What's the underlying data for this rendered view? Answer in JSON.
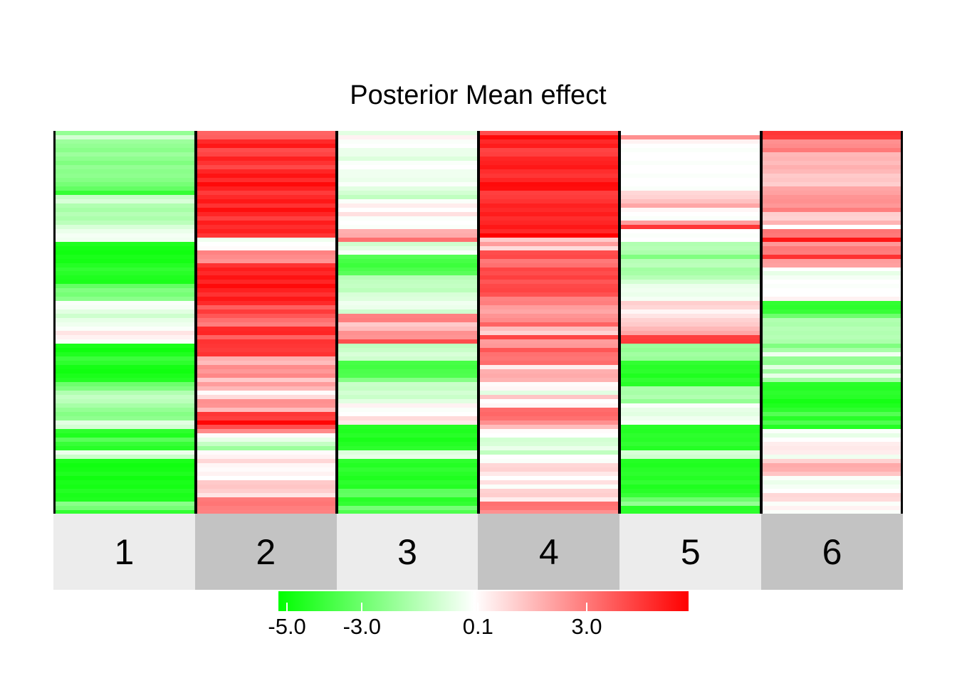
{
  "title": "Posterior Mean effect",
  "colors": {
    "background": "#ffffff",
    "separator": "#000000",
    "band_light": "#ececec",
    "band_dark": "#c3c3c3",
    "legend_tick": "#ffffff"
  },
  "chart_data": {
    "type": "heatmap",
    "title": "Posterior Mean effect",
    "orientation": "vertical-columns",
    "categories": [
      "1",
      "2",
      "3",
      "4",
      "5",
      "6"
    ],
    "rows_per_column": 90,
    "value_range": [
      -5.23,
      5.72
    ],
    "colormap": {
      "negative": "#00ff00",
      "zero": "#ffffff",
      "positive": "#ff0000"
    },
    "legend_ticks": [
      {
        "label": "-5.0",
        "value": -5.0
      },
      {
        "label": "-3.0",
        "value": -3.0
      },
      {
        "label": "0.1",
        "value": 0.1
      },
      {
        "label": "3.0",
        "value": 3.0
      }
    ],
    "series": [
      {
        "name": "1",
        "values": [
          -2.2,
          -0.9,
          -2.0,
          -2.2,
          -2.4,
          -2.0,
          -2.3,
          -2.6,
          -2.2,
          -2.4,
          -2.3,
          -2.5,
          -2.8,
          -3.2,
          -4.2,
          -1.2,
          -0.8,
          -1.6,
          -1.8,
          -1.5,
          -1.7,
          -1.4,
          -0.8,
          -0.4,
          -0.2,
          -0.3,
          -4.6,
          -4.8,
          -4.9,
          -4.7,
          -4.8,
          -4.5,
          -4.2,
          -4.4,
          -4.6,
          -4.7,
          -3.2,
          -2.6,
          -2.8,
          -2.4,
          -0.1,
          -0.2,
          -0.6,
          -1.0,
          -0.5,
          -0.3,
          -0.1,
          0.6,
          0.3,
          -0.1,
          -4.7,
          -4.9,
          -4.6,
          -4.0,
          -4.3,
          -4.8,
          -4.9,
          -4.7,
          -4.5,
          -3.0,
          -2.6,
          -1.6,
          -1.2,
          -1.4,
          -1.8,
          -2.2,
          -2.5,
          -2.3,
          -0.6,
          -0.9,
          -4.3,
          -4.6,
          -3.4,
          -4.1,
          -4.4,
          -0.4,
          -1.1,
          -4.7,
          -4.9,
          -4.8,
          -4.6,
          -4.9,
          -4.7,
          -4.8,
          -4.5,
          -4.7,
          -4.6,
          -2.4,
          -2.8,
          -4.2
        ]
      },
      {
        "name": "2",
        "values": [
          3.5,
          3.6,
          4.8,
          5.2,
          4.0,
          4.2,
          5.0,
          4.6,
          4.1,
          4.9,
          5.3,
          4.7,
          5.5,
          5.0,
          4.4,
          4.8,
          5.2,
          4.6,
          5.4,
          4.9,
          4.3,
          5.1,
          4.7,
          5.0,
          4.5,
          -0.3,
          0.0,
          0.1,
          2.8,
          2.6,
          2.4,
          4.6,
          5.1,
          4.8,
          5.3,
          4.9,
          5.5,
          5.0,
          4.6,
          5.2,
          4.8,
          3.6,
          4.4,
          3.8,
          3.2,
          2.9,
          4.8,
          4.9,
          3.5,
          4.6,
          4.5,
          4.4,
          4.6,
          1.8,
          1.5,
          2.6,
          2.3,
          2.7,
          1.2,
          2.2,
          1.6,
          0.1,
          0.8,
          2.5,
          2.4,
          1.5,
          4.5,
          4.3,
          5.6,
          4.0,
          2.6,
          0.1,
          -0.5,
          -1.2,
          -2.0,
          0.1,
          0.3,
          0.9,
          0.2,
          0.1,
          0.3,
          0.0,
          1.2,
          1.3,
          1.1,
          0.6,
          3.0,
          3.1,
          2.9,
          2.8
        ]
      },
      {
        "name": "3",
        "values": [
          -0.6,
          0.3,
          -0.1,
          0.0,
          -0.4,
          -0.4,
          -0.7,
          -0.1,
          0.0,
          -0.3,
          -0.3,
          -0.4,
          -0.1,
          -0.6,
          -0.9,
          -1.3,
          -0.1,
          0.4,
          0.0,
          0.7,
          -0.1,
          0.0,
          -0.1,
          1.8,
          1.9,
          3.2,
          -1.0,
          -0.6,
          -0.1,
          -3.5,
          -3.8,
          -4.0,
          -3.7,
          -3.4,
          -1.5,
          -1.3,
          -1.2,
          -1.4,
          -0.8,
          -0.7,
          -0.3,
          -0.4,
          -1.0,
          2.8,
          2.9,
          1.2,
          1.5,
          2.5,
          2.4,
          4.0,
          -1.3,
          -1.1,
          -0.8,
          -1.0,
          -3.8,
          -3.9,
          -3.7,
          -3.6,
          -2.5,
          -1.1,
          -1.2,
          -0.9,
          -1.1,
          -0.6,
          0.3,
          -0.1,
          0.0,
          0.8,
          0.5,
          -4.5,
          -4.6,
          -4.4,
          -4.7,
          -4.5,
          -4.3,
          -0.7,
          -0.5,
          -4.3,
          -4.5,
          -4.2,
          -4.4,
          -4.6,
          -4.3,
          -4.5,
          -3.3,
          -3.2,
          -4.4,
          -4.2,
          -2.8,
          -3.6
        ]
      },
      {
        "name": "4",
        "values": [
          4.0,
          5.5,
          4.8,
          5.1,
          4.2,
          4.3,
          4.9,
          5.0,
          5.2,
          4.7,
          4.5,
          4.9,
          5.5,
          5.4,
          4.3,
          4.4,
          4.6,
          5.0,
          4.8,
          5.1,
          4.7,
          4.9,
          5.2,
          4.8,
          5.7,
          1.2,
          2.2,
          0.8,
          4.0,
          4.1,
          3.0,
          3.2,
          4.2,
          4.0,
          4.3,
          3.8,
          4.1,
          4.2,
          3.9,
          2.8,
          2.9,
          2.2,
          2.0,
          2.4,
          2.6,
          3.5,
          1.5,
          1.0,
          4.2,
          2.2,
          2.3,
          3.8,
          3.2,
          3.1,
          3.3,
          0.4,
          1.8,
          1.9,
          1.7,
          0.1,
          0.2,
          -0.6,
          1.3,
          0.0,
          0.2,
          3.3,
          3.4,
          3.2,
          2.5,
          1.5,
          0.1,
          0.0,
          -0.9,
          -0.8,
          -0.4,
          -1.3,
          0.0,
          -0.1,
          0.9,
          1.0,
          0.5,
          0.0,
          0.7,
          -0.1,
          1.0,
          1.1,
          0.4,
          3.2,
          3.1,
          2.5
        ]
      },
      {
        "name": "5",
        "values": [
          0.0,
          2.5,
          0.3,
          0.0,
          -0.1,
          0.0,
          0.0,
          -0.1,
          0.0,
          0.0,
          -0.1,
          0.0,
          0.0,
          -0.1,
          0.9,
          1.0,
          1.4,
          2.0,
          0.2,
          0.0,
          -0.1,
          2.2,
          4.5,
          0.0,
          -0.1,
          0.0,
          -1.6,
          -1.5,
          -1.7,
          -2.6,
          -1.5,
          -1.4,
          -1.9,
          -1.8,
          -1.5,
          -0.9,
          -0.4,
          -0.3,
          -0.4,
          -0.2,
          1.1,
          0.9,
          0.2,
          0.6,
          1.0,
          1.2,
          1.6,
          2.0,
          4.3,
          4.4,
          -2.0,
          -2.2,
          -1.9,
          -2.1,
          -4.2,
          -4.4,
          -4.3,
          -4.6,
          -4.2,
          -4.4,
          -1.7,
          -1.8,
          -1.6,
          -2.2,
          -0.1,
          -0.5,
          -0.6,
          -0.3,
          -0.1,
          -4.4,
          -4.5,
          -4.3,
          -4.4,
          -4.2,
          -4.5,
          -0.8,
          -1.0,
          -4.5,
          -4.6,
          -4.4,
          -4.3,
          -4.5,
          -4.2,
          -4.6,
          -4.4,
          -4.1,
          -3.0,
          -2.2,
          -4.4,
          -4.3
        ]
      },
      {
        "name": "6",
        "values": [
          4.5,
          4.4,
          2.5,
          2.6,
          3.0,
          1.6,
          1.7,
          1.5,
          1.8,
          1.6,
          1.2,
          1.3,
          1.1,
          2.0,
          2.1,
          2.4,
          2.5,
          2.3,
          2.9,
          1.1,
          1.0,
          1.7,
          0.0,
          3.1,
          3.0,
          5.2,
          2.3,
          3.0,
          2.9,
          4.6,
          2.2,
          2.1,
          0.0,
          -0.5,
          -0.2,
          0.0,
          -0.1,
          0.0,
          0.0,
          0.3,
          -4.2,
          -4.3,
          -4.1,
          -3.0,
          -1.6,
          -1.7,
          -1.5,
          -1.6,
          -1.5,
          -1.7,
          -2.6,
          -1.8,
          -0.3,
          -2.2,
          -2.3,
          -0.6,
          -1.9,
          -0.5,
          -1.8,
          -4.4,
          -4.5,
          -4.3,
          -4.4,
          -4.8,
          -4.6,
          -4.3,
          -3.5,
          -4.4,
          -3.6,
          -4.5,
          -0.1,
          -0.5,
          0.0,
          0.4,
          0.5,
          0.4,
          -0.3,
          1.0,
          1.9,
          1.8,
          1.3,
          -0.1,
          -0.4,
          -0.2,
          0.0,
          0.9,
          0.8,
          -0.1,
          0.3,
          -0.1
        ]
      }
    ]
  }
}
